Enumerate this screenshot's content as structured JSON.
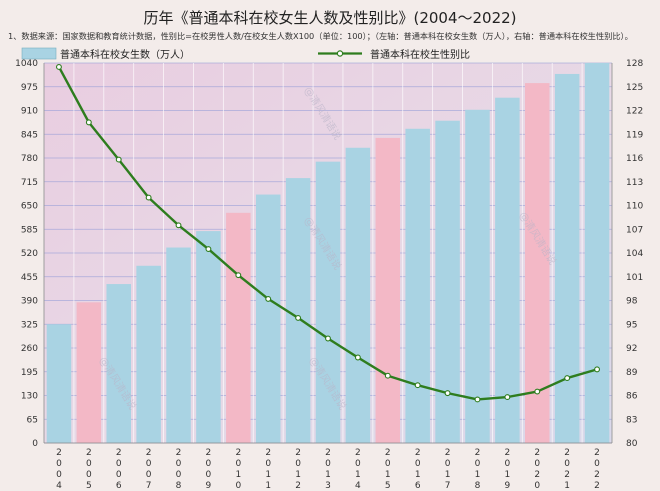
{
  "title": "历年《普通本科在校女生人数及性别比》(2004～2022)",
  "note": "1、数据来源：国家数据和教育统计数据，性别比=在校男性人数/在校女生人数X100（单位：100）；（左轴：普通本科在校女生数（万人），右轴：普通本科在校生性别比）。",
  "watermark": "@清风清语说",
  "colors": {
    "bar_blue": "#a9d3e3",
    "bar_pink": "#f3b8c6",
    "line": "#2e7d1e",
    "marker": "#ffffff"
  },
  "chart_data": {
    "type": "bar",
    "categories": [
      "2004",
      "2005",
      "2006",
      "2007",
      "2008",
      "2009",
      "2010",
      "2011",
      "2012",
      "2013",
      "2014",
      "2015",
      "2016",
      "2017",
      "2018",
      "2019",
      "2020",
      "2021",
      "2022"
    ],
    "category_labels": [
      "2\n0\n0\n4",
      "2\n0\n0\n5",
      "2\n0\n0\n6",
      "2\n0\n0\n7",
      "2\n0\n0\n8",
      "2\n0\n0\n9",
      "2\n0\n1\n0",
      "2\n0\n1\n1",
      "2\n0\n1\n2",
      "2\n0\n1\n3",
      "2\n0\n1\n4",
      "2\n0\n1\n5",
      "2\n0\n1\n6",
      "2\n0\n1\n7",
      "2\n0\n1\n8",
      "2\n0\n1\n9",
      "2\n0\n2\n0",
      "2\n0\n2\n1",
      "2\n0\n2\n2"
    ],
    "series": [
      {
        "name": "普通本科在校女生数（万人）",
        "type": "bar",
        "axis": "left",
        "values": [
          325,
          385,
          435,
          485,
          535,
          580,
          630,
          680,
          725,
          770,
          808,
          835,
          860,
          882,
          912,
          945,
          985,
          1010,
          1040
        ],
        "highlight": [
          false,
          true,
          false,
          false,
          false,
          false,
          true,
          false,
          false,
          false,
          false,
          true,
          false,
          false,
          false,
          false,
          true,
          false,
          false
        ]
      },
      {
        "name": "普通本科在校生性别比",
        "type": "line",
        "axis": "right",
        "values": [
          127.5,
          120.5,
          115.8,
          111,
          107.5,
          104.5,
          101.2,
          98.2,
          95.8,
          93.2,
          90.8,
          88.5,
          87.3,
          86.3,
          85.5,
          85.8,
          86.5,
          88.2,
          89.3
        ]
      }
    ],
    "y_left": {
      "min": 0,
      "max": 1040,
      "ticks": [
        "0",
        "65",
        "130",
        "195",
        "260",
        "325",
        "390",
        "455",
        "520",
        "585",
        "650",
        "715",
        "780",
        "845",
        "910",
        "975",
        "1040"
      ]
    },
    "y_right": {
      "min": 80,
      "max": 128,
      "ticks": [
        "80",
        "83",
        "86",
        "89",
        "92",
        "95",
        "98",
        "101",
        "104",
        "107",
        "110",
        "113",
        "116",
        "119",
        "122",
        "125",
        "128"
      ]
    },
    "grid": true,
    "legend": "top-left"
  }
}
